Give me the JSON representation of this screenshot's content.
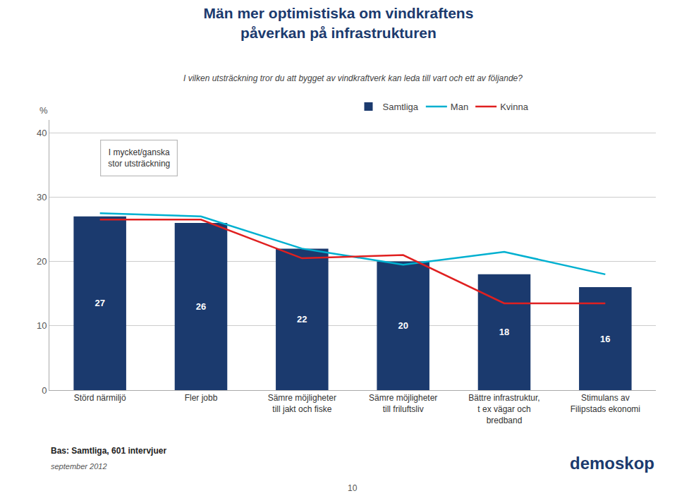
{
  "chart_data": {
    "type": "bar",
    "title": "Män mer optimistiska om vindkraftens\npåverkan på infrastrukturen",
    "subtitle": "I vilken utsträckning tror du att bygget av vindkraftverk kan leda till vart och ett av följande?",
    "ylabel": "%",
    "categories": [
      "Störd närmiljö",
      "Fler jobb",
      "Sämre möjligheter\ntill jakt och fiske",
      "Sämre möjligheter\ntill friluftsliv",
      "Bättre infrastruktur,\nt ex vägar och\nbredband",
      "Stimulans av\nFilipstads ekonomi"
    ],
    "series": [
      {
        "name": "Samtliga",
        "type": "bar",
        "color": "#1b3a6e",
        "values": [
          27,
          26,
          22,
          20,
          18,
          16
        ],
        "data_labels": true
      },
      {
        "name": "Man",
        "type": "line",
        "color": "#00b0d0",
        "values": [
          27.5,
          27.0,
          22.0,
          19.5,
          21.5,
          18.0
        ]
      },
      {
        "name": "Kvinna",
        "type": "line",
        "color": "#e02020",
        "values": [
          26.5,
          26.5,
          20.5,
          21.0,
          13.5,
          13.5
        ]
      }
    ],
    "ylim": [
      0,
      42
    ],
    "yticks": [
      0,
      10,
      20,
      30,
      40
    ],
    "grid": true,
    "legend": "top",
    "annotations": [
      "I mycket/ganska\nstor utsträckning",
      "Bas: Samtliga, 601 intervjuer",
      "september 2012",
      "10",
      "demoskop"
    ]
  }
}
